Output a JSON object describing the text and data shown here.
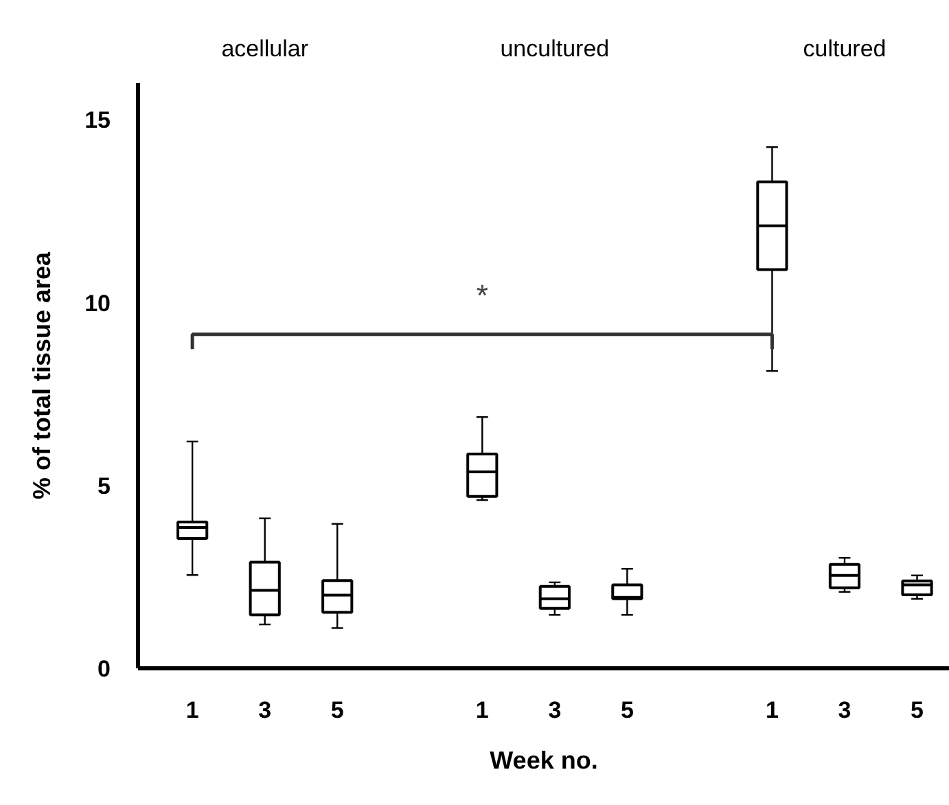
{
  "chart_data": {
    "type": "box",
    "categories": [
      "1",
      "3",
      "5",
      null,
      "1",
      "3",
      "5",
      null,
      "1",
      "3",
      "5"
    ],
    "boxes": [
      {
        "low": 2.55,
        "q1": 3.55,
        "median": 3.85,
        "q3": 4.0,
        "high": 6.2
      },
      {
        "low": 1.2,
        "q1": 1.46,
        "median": 2.13,
        "q3": 2.9,
        "high": 4.1
      },
      {
        "low": 1.1,
        "q1": 1.53,
        "median": 2.0,
        "q3": 2.4,
        "high": 3.95
      },
      null,
      {
        "low": 4.6,
        "q1": 4.7,
        "median": 5.37,
        "q3": 5.86,
        "high": 6.87
      },
      {
        "low": 1.46,
        "q1": 1.64,
        "median": 1.9,
        "q3": 2.24,
        "high": 2.35
      },
      {
        "low": 1.46,
        "q1": 1.9,
        "median": 1.94,
        "q3": 2.28,
        "high": 2.72
      },
      null,
      {
        "low": 8.13,
        "q1": 10.9,
        "median": 12.1,
        "q3": 13.3,
        "high": 14.25
      },
      {
        "low": 2.09,
        "q1": 2.2,
        "median": 2.54,
        "q3": 2.84,
        "high": 3.02
      },
      {
        "low": 1.9,
        "q1": 2.01,
        "median": 2.28,
        "q3": 2.39,
        "high": 2.54
      }
    ],
    "xlabel": "Week no.",
    "ylabel": "% of total tissue area",
    "ylim": [
      0,
      16
    ],
    "yticks": [
      0,
      5,
      10,
      15
    ],
    "grid": false,
    "annotations": [
      "acellular",
      "uncultured",
      "cultured",
      "*"
    ]
  }
}
